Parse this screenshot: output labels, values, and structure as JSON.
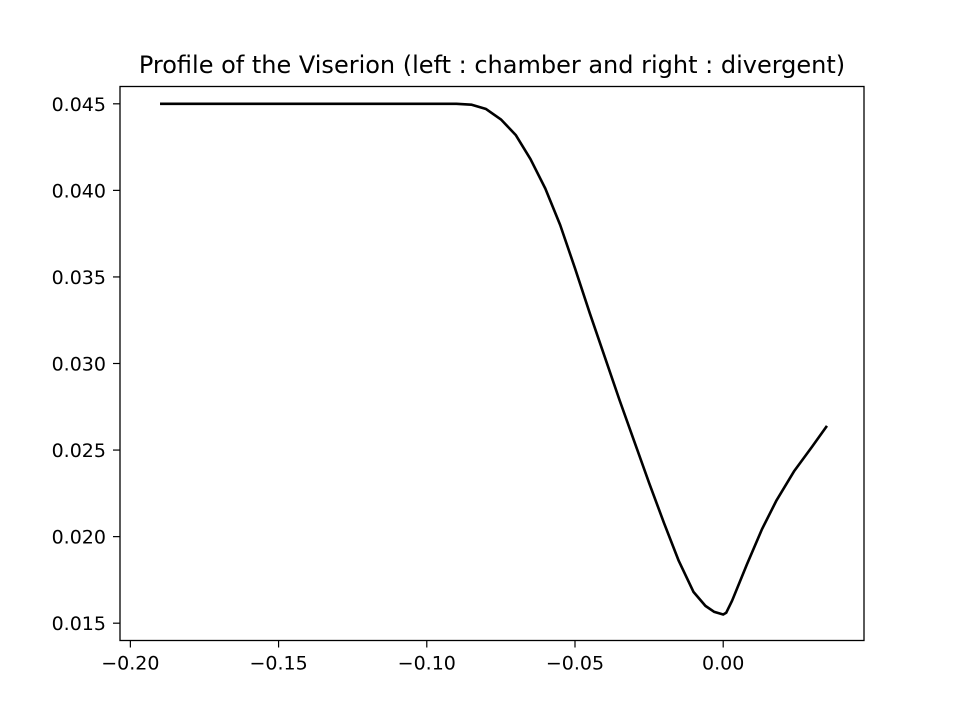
{
  "chart_data": {
    "type": "line",
    "title": "Profile of the Viserion (left : chamber and right : divergent)",
    "xlabel": "",
    "ylabel": "",
    "xlim": [
      -0.2035,
      0.0475
    ],
    "ylim": [
      0.014,
      0.046
    ],
    "grid": false,
    "legend": "none",
    "x_ticks": [
      {
        "value": -0.2,
        "label": "−0.20"
      },
      {
        "value": -0.15,
        "label": "−0.15"
      },
      {
        "value": -0.1,
        "label": "−0.10"
      },
      {
        "value": -0.05,
        "label": "−0.05"
      },
      {
        "value": 0.0,
        "label": "0.00"
      }
    ],
    "y_ticks": [
      {
        "value": 0.015,
        "label": "0.015"
      },
      {
        "value": 0.02,
        "label": "0.020"
      },
      {
        "value": 0.025,
        "label": "0.025"
      },
      {
        "value": 0.03,
        "label": "0.030"
      },
      {
        "value": 0.035,
        "label": "0.035"
      },
      {
        "value": 0.04,
        "label": "0.040"
      },
      {
        "value": 0.045,
        "label": "0.045"
      }
    ],
    "series": [
      {
        "color": "#000000",
        "points": [
          [
            -0.19,
            0.045
          ],
          [
            -0.15,
            0.045
          ],
          [
            -0.1,
            0.045
          ],
          [
            -0.09,
            0.045
          ],
          [
            -0.085,
            0.04495
          ],
          [
            -0.08,
            0.0447
          ],
          [
            -0.075,
            0.0441
          ],
          [
            -0.07,
            0.0432
          ],
          [
            -0.065,
            0.0418
          ],
          [
            -0.06,
            0.0401
          ],
          [
            -0.055,
            0.038
          ],
          [
            -0.05,
            0.0355
          ],
          [
            -0.045,
            0.0329
          ],
          [
            -0.04,
            0.0304
          ],
          [
            -0.035,
            0.0279
          ],
          [
            -0.03,
            0.0255
          ],
          [
            -0.025,
            0.0231
          ],
          [
            -0.02,
            0.0208
          ],
          [
            -0.015,
            0.0186
          ],
          [
            -0.01,
            0.0168
          ],
          [
            -0.006,
            0.016
          ],
          [
            -0.003,
            0.01565
          ],
          [
            0.0,
            0.0155
          ],
          [
            0.001,
            0.0156
          ],
          [
            0.003,
            0.0163
          ],
          [
            0.008,
            0.0184
          ],
          [
            0.013,
            0.0204
          ],
          [
            0.018,
            0.0221
          ],
          [
            0.024,
            0.0238
          ],
          [
            0.03,
            0.0252
          ],
          [
            0.035,
            0.0264
          ]
        ]
      }
    ]
  }
}
